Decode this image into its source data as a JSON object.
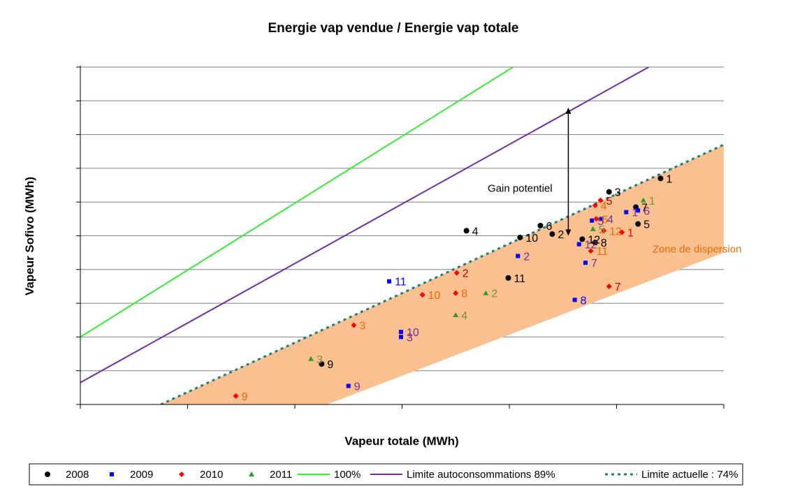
{
  "chart_data": {
    "type": "scatter",
    "title": "Energie vap vendue / Energie vap totale",
    "xlabel": "Vapeur totale (MWh)",
    "ylabel": "Vapeur Sofivo (MWh)",
    "grid": "horizontal",
    "legend_position": "bottom",
    "xlim": [
      0,
      12
    ],
    "ylim": [
      0,
      10
    ],
    "series": [
      {
        "name": "2008",
        "color": "#000000",
        "marker": "circle",
        "points": [
          {
            "x": 10.82,
            "y": 6.7,
            "label": "1",
            "label_color": "#000000"
          },
          {
            "x": 8.8,
            "y": 5.05,
            "label": "2",
            "label_color": "#000000"
          },
          {
            "x": 9.86,
            "y": 6.3,
            "label": "3",
            "label_color": "#000000"
          },
          {
            "x": 7.2,
            "y": 5.15,
            "label": "4",
            "label_color": "#000000"
          },
          {
            "x": 10.4,
            "y": 5.35,
            "label": "5",
            "label_color": "#000000"
          },
          {
            "x": 8.58,
            "y": 5.3,
            "label": "6",
            "label_color": "#000000"
          },
          {
            "x": 10.36,
            "y": 5.85,
            "label": "7",
            "label_color": "#000000"
          },
          {
            "x": 9.6,
            "y": 4.8,
            "label": "8",
            "label_color": "#000000"
          },
          {
            "x": 4.5,
            "y": 1.2,
            "label": "9",
            "label_color": "#000000"
          },
          {
            "x": 8.2,
            "y": 4.95,
            "label": "10",
            "label_color": "#000000"
          },
          {
            "x": 7.98,
            "y": 3.75,
            "label": "11",
            "label_color": "#000000"
          },
          {
            "x": 9.36,
            "y": 4.9,
            "label": "12",
            "label_color": "#000000"
          }
        ]
      },
      {
        "name": "2009",
        "color": "#0000ff",
        "marker": "square",
        "points": [
          {
            "x": 10.18,
            "y": 5.7,
            "label": "1",
            "label_color": "#7030a0"
          },
          {
            "x": 8.16,
            "y": 4.4,
            "label": "2",
            "label_color": "#7030a0"
          },
          {
            "x": 5.98,
            "y": 2.0,
            "label": "3",
            "label_color": "#7030a0"
          },
          {
            "x": 9.72,
            "y": 5.5,
            "label": "4",
            "label_color": "#7030a0"
          },
          {
            "x": 9.54,
            "y": 5.45,
            "label": "5",
            "label_color": "#7030a0"
          },
          {
            "x": 10.4,
            "y": 5.75,
            "label": "6",
            "label_color": "#7030a0"
          },
          {
            "x": 9.42,
            "y": 4.2,
            "label": "7",
            "label_color": "#7030a0"
          },
          {
            "x": 9.22,
            "y": 3.1,
            "label": "8",
            "label_color": "#0000ff"
          },
          {
            "x": 5.0,
            "y": 0.55,
            "label": "9",
            "label_color": "#7030a0"
          },
          {
            "x": 5.98,
            "y": 2.15,
            "label": "10",
            "label_color": "#7030a0"
          },
          {
            "x": 5.76,
            "y": 3.65,
            "label": "11",
            "label_color": "#0000ff"
          },
          {
            "x": 9.3,
            "y": 4.75,
            "label": "12",
            "label_color": "#7030a0"
          }
        ]
      },
      {
        "name": "2010",
        "color": "#ff0000",
        "marker": "diamond",
        "points": [
          {
            "x": 10.1,
            "y": 5.1,
            "label": "1",
            "label_color": "#ff0000"
          },
          {
            "x": 7.02,
            "y": 3.9,
            "label": "2",
            "label_color": "#c00000"
          },
          {
            "x": 5.1,
            "y": 2.35,
            "label": "3",
            "label_color": "#e46c0a"
          },
          {
            "x": 9.6,
            "y": 5.9,
            "label": "4",
            "label_color": "#e46c0a"
          },
          {
            "x": 9.7,
            "y": 6.05,
            "label": "5",
            "label_color": "#c00000"
          },
          {
            "x": 9.62,
            "y": 5.5,
            "label": "6",
            "label_color": "#e46c0a"
          },
          {
            "x": 9.86,
            "y": 3.5,
            "label": "7",
            "label_color": "#c00000"
          },
          {
            "x": 7.0,
            "y": 3.3,
            "label": "8",
            "label_color": "#e46c0a"
          },
          {
            "x": 2.9,
            "y": 0.25,
            "label": "9",
            "label_color": "#e46c0a"
          },
          {
            "x": 6.38,
            "y": 3.25,
            "label": "10",
            "label_color": "#e46c0a"
          },
          {
            "x": 9.52,
            "y": 4.55,
            "label": "11",
            "label_color": "#e46c0a"
          },
          {
            "x": 9.76,
            "y": 5.15,
            "label": "12",
            "label_color": "#e46c0a"
          }
        ]
      },
      {
        "name": "2011",
        "color": "#339933",
        "marker": "triangle",
        "points": [
          {
            "x": 10.5,
            "y": 6.05,
            "label": "1",
            "label_color": "#77933c"
          },
          {
            "x": 7.56,
            "y": 3.3,
            "label": "2",
            "label_color": "#77933c"
          },
          {
            "x": 4.3,
            "y": 1.35,
            "label": "3",
            "label_color": "#77933c"
          },
          {
            "x": 7.0,
            "y": 2.65,
            "label": "4",
            "label_color": "#77933c"
          },
          {
            "x": 9.56,
            "y": 5.2,
            "label": "5",
            "label_color": "#77933c"
          }
        ]
      },
      {
        "name": "100%",
        "color": "#33ee33",
        "type": "line",
        "line_from": [
          0,
          2.0
        ],
        "line_to": [
          8.07,
          10
        ]
      },
      {
        "name": "Limite autoconsommations 89%",
        "color": "#7030a0",
        "type": "line",
        "line_from": [
          0,
          0.65
        ],
        "line_to": [
          10.6,
          10
        ]
      },
      {
        "name": "Limite actuelle : 74%",
        "color": "#1a7f7f",
        "type": "line",
        "dashed": true,
        "line_from": [
          1.5,
          0
        ],
        "line_to": [
          12,
          7.7
        ]
      }
    ],
    "annotations": [
      {
        "text": "Gain potentiel",
        "color": "#000000"
      },
      {
        "text": "Zone de dispersion",
        "color": "#e46c0a"
      }
    ],
    "dispersion_zone": {
      "color": "#fac090",
      "polygon": [
        [
          1.5,
          0
        ],
        [
          12,
          7.7
        ],
        [
          12,
          4.5
        ],
        [
          4.6,
          0
        ]
      ]
    },
    "gain_arrow": {
      "x": 9.1,
      "y_from": 5.0,
      "y_to": 8.8
    }
  }
}
